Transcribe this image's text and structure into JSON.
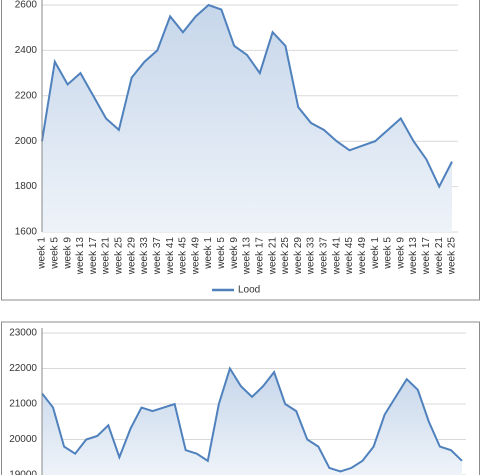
{
  "chart_data": [
    {
      "type": "area",
      "categories": [
        "week 1",
        "week 5",
        "week 9",
        "week 13",
        "week 17",
        "week 21",
        "week 25",
        "week 29",
        "week 33",
        "week 37",
        "week 41",
        "week 45",
        "week 49",
        "week 1",
        "week 5",
        "week 9",
        "week 13",
        "week 17",
        "week 21",
        "week 25",
        "week 29",
        "week 33",
        "week 37",
        "week 41",
        "week 45",
        "week 49",
        "week 1",
        "week 5",
        "week 9",
        "week 13",
        "week 17",
        "week 21",
        "week 25"
      ],
      "series": [
        {
          "name": "Lood",
          "color": "#4f81bd",
          "values": [
            2000,
            2350,
            2250,
            2300,
            2200,
            2100,
            2050,
            2280,
            2350,
            2400,
            2550,
            2480,
            2550,
            2600,
            2580,
            2420,
            2380,
            2300,
            2480,
            2420,
            2150,
            2080,
            2050,
            2000,
            1960,
            1980,
            2000,
            2050,
            2100,
            2000,
            1920,
            1800,
            1910
          ]
        }
      ],
      "ylim": [
        1600,
        2600
      ],
      "yticks": [
        1600,
        1800,
        2000,
        2200,
        2400,
        2600
      ],
      "grid": true,
      "legend": "bottom"
    },
    {
      "type": "area",
      "series": [
        {
          "color": "#4f81bd",
          "values": [
            21300,
            20900,
            19800,
            19600,
            20000,
            20100,
            20400,
            19500,
            20300,
            20900,
            20800,
            20900,
            21000,
            19700,
            19600,
            19400,
            21000,
            22000,
            21500,
            21200,
            21500,
            21900,
            21000,
            20800,
            20000,
            19800,
            19200,
            19100,
            19200,
            19400,
            19800,
            20700,
            21200,
            21700,
            21400,
            20500,
            19800,
            19700,
            19400
          ]
        }
      ],
      "ylim": [
        19000,
        23000
      ],
      "yticks": [
        19000,
        20000,
        21000,
        22000,
        23000
      ],
      "grid": true
    }
  ]
}
